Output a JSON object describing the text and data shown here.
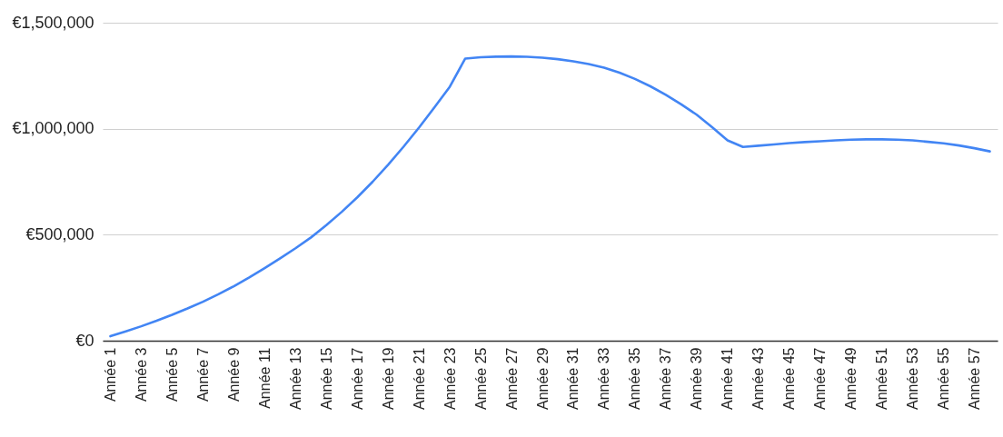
{
  "chart_data": {
    "type": "line",
    "categories": [
      "Année 1",
      null,
      "Année 3",
      null,
      "Année 5",
      null,
      "Année 7",
      null,
      "Année 9",
      null,
      "Année 11",
      null,
      "Année 13",
      null,
      "Année 15",
      null,
      "Année 17",
      null,
      "Année 19",
      null,
      "Année 21",
      null,
      "Année 23",
      null,
      "Année 25",
      null,
      "Année 27",
      null,
      "Année 29",
      null,
      "Année 31",
      null,
      "Année 33",
      null,
      "Année 35",
      null,
      "Année 37",
      null,
      "Année 39",
      null,
      "Année 41",
      null,
      "Année 43",
      null,
      "Année 45",
      null,
      "Année 47",
      null,
      "Année 49",
      null,
      "Année 51",
      null,
      "Année 53",
      null,
      "Année 55",
      null,
      "Année 57",
      null
    ],
    "series": [
      {
        "color": "#4285f4",
        "values": [
          21000,
          44000,
          68000,
          94000,
          122000,
          152000,
          184000,
          219000,
          257000,
          298000,
          342000,
          388000,
          436000,
          487000,
          545000,
          608000,
          676000,
          750000,
          830000,
          915000,
          1005000,
          1100000,
          1198000,
          1331000,
          1337000,
          1340000,
          1341000,
          1339000,
          1335000,
          1328000,
          1318000,
          1305000,
          1288000,
          1264000,
          1235000,
          1200000,
          1160000,
          1115000,
          1066000,
          1007000,
          945000,
          914000,
          920000,
          926000,
          932000,
          937000,
          941000,
          945000,
          948000,
          950000,
          950000,
          948000,
          945000,
          938000,
          931000,
          921000,
          908000,
          893000
        ]
      }
    ],
    "ylim": [
      0,
      1500000
    ],
    "yticks": [
      {
        "value": 0,
        "label": "€0"
      },
      {
        "value": 500000,
        "label": "€500,000"
      },
      {
        "value": 1000000,
        "label": "€1,000,000"
      },
      {
        "value": 1500000,
        "label": "€1,500,000"
      }
    ],
    "grid": "y"
  }
}
